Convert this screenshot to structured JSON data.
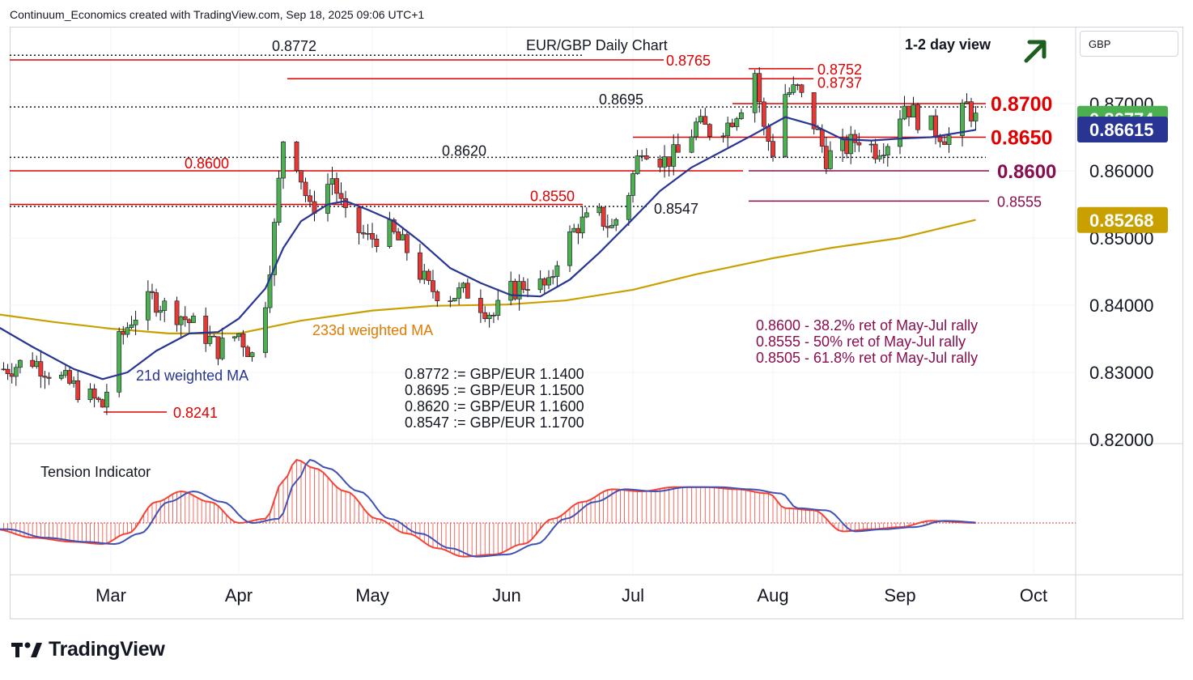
{
  "header": {
    "attribution": "Continuum_Economics created with TradingView.com, Sep 18, 2025 09:06 UTC+1"
  },
  "currency": "GBP",
  "branding": {
    "name": "TradingView"
  },
  "colors": {
    "bull": "#4caf50",
    "bear": "#e53935",
    "resistance": "#e00000",
    "support": "#880e4f",
    "ma21": "#283593",
    "ma233": "#c8a000",
    "last_price_bg": "#4caf50",
    "ma21_bg": "#283593",
    "ma233_bg": "#c8a000",
    "arrow": "#1b5e20",
    "tension_fast": "#f44336",
    "tension_slow": "#3f51b5"
  },
  "chart_data": {
    "type": "candlestick",
    "title": "EUR/GBP Daily Chart",
    "view": "1-2 day view",
    "view_direction": "up",
    "y_axis": {
      "unit": "GBP",
      "ticks": [
        "0.82000",
        "0.83000",
        "0.84000",
        "0.85000",
        "0.86000",
        "0.87000"
      ],
      "range": [
        0.8175,
        0.8815
      ],
      "scale": "linear"
    },
    "x_axis": {
      "ticks": [
        "Mar",
        "Apr",
        "May",
        "Jun",
        "Jul",
        "Aug",
        "Sep",
        "Oct"
      ]
    },
    "price_badges": [
      {
        "value": "0.86774",
        "series": "last_price"
      },
      {
        "value": "0.86615",
        "series": "21d weighted MA"
      },
      {
        "value": "0.85268",
        "series": "233d weighted MA"
      }
    ],
    "moving_averages": [
      {
        "name": "21d weighted MA",
        "points": [
          [
            "2025-02-01",
            0.837
          ],
          [
            "2025-02-10",
            0.8338
          ],
          [
            "2025-02-20",
            0.8305
          ],
          [
            "2025-02-27",
            0.829
          ],
          [
            "2025-03-05",
            0.83
          ],
          [
            "2025-03-12",
            0.8332
          ],
          [
            "2025-03-20",
            0.8358
          ],
          [
            "2025-03-27",
            0.836
          ],
          [
            "2025-04-01",
            0.838
          ],
          [
            "2025-04-07",
            0.8425
          ],
          [
            "2025-04-11",
            0.8485
          ],
          [
            "2025-04-15",
            0.8525
          ],
          [
            "2025-04-21",
            0.855
          ],
          [
            "2025-04-25",
            0.8555
          ],
          [
            "2025-04-30",
            0.8542
          ],
          [
            "2025-05-06",
            0.8525
          ],
          [
            "2025-05-12",
            0.8495
          ],
          [
            "2025-05-19",
            0.8455
          ],
          [
            "2025-05-26",
            0.8433
          ],
          [
            "2025-06-02",
            0.8415
          ],
          [
            "2025-06-09",
            0.8413
          ],
          [
            "2025-06-16",
            0.8438
          ],
          [
            "2025-06-23",
            0.8478
          ],
          [
            "2025-06-30",
            0.8522
          ],
          [
            "2025-07-07",
            0.857
          ],
          [
            "2025-07-14",
            0.8605
          ],
          [
            "2025-07-21",
            0.863
          ],
          [
            "2025-07-28",
            0.8655
          ],
          [
            "2025-08-04",
            0.868
          ],
          [
            "2025-08-11",
            0.8668
          ],
          [
            "2025-08-18",
            0.8647
          ],
          [
            "2025-08-25",
            0.8645
          ],
          [
            "2025-09-01",
            0.8648
          ],
          [
            "2025-09-08",
            0.865
          ],
          [
            "2025-09-18",
            0.8661
          ]
        ]
      },
      {
        "name": "233d weighted MA",
        "points": [
          [
            "2025-02-01",
            0.8387
          ],
          [
            "2025-02-15",
            0.8375
          ],
          [
            "2025-03-01",
            0.8365
          ],
          [
            "2025-03-15",
            0.8358
          ],
          [
            "2025-04-01",
            0.8358
          ],
          [
            "2025-04-15",
            0.8377
          ],
          [
            "2025-05-01",
            0.8392
          ],
          [
            "2025-05-15",
            0.8399
          ],
          [
            "2025-06-01",
            0.8401
          ],
          [
            "2025-06-15",
            0.8407
          ],
          [
            "2025-07-01",
            0.8423
          ],
          [
            "2025-07-15",
            0.8446
          ],
          [
            "2025-08-01",
            0.847
          ],
          [
            "2025-08-15",
            0.8485
          ],
          [
            "2025-09-01",
            0.85
          ],
          [
            "2025-09-18",
            0.8527
          ]
        ]
      }
    ],
    "candles_close": [
      [
        "2025-02-03",
        0.8305
      ],
      [
        "2025-02-10",
        0.8318
      ],
      [
        "2025-02-17",
        0.829
      ],
      [
        "2025-02-24",
        0.8262
      ],
      [
        "2025-02-27",
        0.825
      ],
      [
        "2025-03-03",
        0.8345
      ],
      [
        "2025-03-06",
        0.838
      ],
      [
        "2025-03-11",
        0.841
      ],
      [
        "2025-03-14",
        0.8398
      ],
      [
        "2025-03-18",
        0.8385
      ],
      [
        "2025-03-24",
        0.8355
      ],
      [
        "2025-03-27",
        0.8335
      ],
      [
        "2025-04-01",
        0.8358
      ],
      [
        "2025-04-04",
        0.8325
      ],
      [
        "2025-04-07",
        0.841
      ],
      [
        "2025-04-09",
        0.8515
      ],
      [
        "2025-04-11",
        0.8648
      ],
      [
        "2025-04-14",
        0.8615
      ],
      [
        "2025-04-17",
        0.854
      ],
      [
        "2025-04-22",
        0.859
      ],
      [
        "2025-04-25",
        0.8528
      ],
      [
        "2025-04-30",
        0.8498
      ],
      [
        "2025-05-05",
        0.851
      ],
      [
        "2025-05-09",
        0.8482
      ],
      [
        "2025-05-14",
        0.8425
      ],
      [
        "2025-05-19",
        0.8415
      ],
      [
        "2025-05-23",
        0.842
      ],
      [
        "2025-05-26",
        0.8402
      ],
      [
        "2025-05-29",
        0.8385
      ],
      [
        "2025-06-02",
        0.842
      ],
      [
        "2025-06-06",
        0.8435
      ],
      [
        "2025-06-11",
        0.8425
      ],
      [
        "2025-06-13",
        0.8472
      ],
      [
        "2025-06-18",
        0.852
      ],
      [
        "2025-06-23",
        0.8532
      ],
      [
        "2025-06-26",
        0.8515
      ],
      [
        "2025-06-30",
        0.857
      ],
      [
        "2025-07-03",
        0.864
      ],
      [
        "2025-07-08",
        0.8615
      ],
      [
        "2025-07-11",
        0.8625
      ],
      [
        "2025-07-15",
        0.8668
      ],
      [
        "2025-07-18",
        0.866
      ],
      [
        "2025-07-22",
        0.867
      ],
      [
        "2025-07-25",
        0.87
      ],
      [
        "2025-07-28",
        0.8748
      ],
      [
        "2025-07-30",
        0.866
      ],
      [
        "2025-08-01",
        0.863
      ],
      [
        "2025-08-04",
        0.8715
      ],
      [
        "2025-08-07",
        0.872
      ],
      [
        "2025-08-11",
        0.867
      ],
      [
        "2025-08-14",
        0.862
      ],
      [
        "2025-08-19",
        0.8635
      ],
      [
        "2025-08-22",
        0.865
      ],
      [
        "2025-08-26",
        0.8632
      ],
      [
        "2025-08-29",
        0.8645
      ],
      [
        "2025-09-02",
        0.87
      ],
      [
        "2025-09-05",
        0.8678
      ],
      [
        "2025-09-09",
        0.866
      ],
      [
        "2025-09-12",
        0.865
      ],
      [
        "2025-09-16",
        0.8697
      ],
      [
        "2025-09-18",
        0.8677
      ]
    ],
    "levels": [
      {
        "label": "0.8772",
        "value": 0.8772,
        "style": "dotted",
        "color": "black"
      },
      {
        "label": "0.8765",
        "value": 0.8765,
        "style": "solid",
        "color": "resistance"
      },
      {
        "label": "0.8752",
        "value": 0.8752,
        "style": "solid",
        "color": "resistance"
      },
      {
        "label": "0.8737",
        "value": 0.8737,
        "style": "solid",
        "color": "resistance"
      },
      {
        "label": "0.8700",
        "value": 0.87,
        "style": "solid",
        "color": "resistance"
      },
      {
        "label": "0.8695",
        "value": 0.8695,
        "style": "dotted",
        "color": "black"
      },
      {
        "label": "0.8650",
        "value": 0.865,
        "style": "solid",
        "color": "resistance"
      },
      {
        "label": "0.8620",
        "value": 0.862,
        "style": "dotted",
        "color": "black"
      },
      {
        "label": "0.8600",
        "value": 0.86,
        "style": "solid",
        "color": "resistance"
      },
      {
        "label": "0.8600",
        "value": 0.86,
        "style": "solid",
        "color": "support"
      },
      {
        "label": "0.8555",
        "value": 0.8555,
        "style": "solid",
        "color": "support"
      },
      {
        "label": "0.8550",
        "value": 0.855,
        "style": "solid",
        "color": "resistance"
      },
      {
        "label": "0.8547",
        "value": 0.8547,
        "style": "dotted",
        "color": "black"
      },
      {
        "label": "0.8241",
        "value": 0.8241,
        "style": "solid",
        "color": "resistance"
      }
    ],
    "annotations": {
      "ma21_label": "21d weighted MA",
      "ma233_label": "233d weighted MA",
      "retracements": [
        "0.8600 - 38.2% ret of May-Jul rally",
        "0.8555 - 50% ret of May-Jul rally",
        "0.8505 - 61.8% ret of May-Jul rally"
      ],
      "conversions": [
        "0.8772 := GBP/EUR 1.1400",
        "0.8695 := GBP/EUR 1.1500",
        "0.8620 := GBP/EUR 1.1600",
        "0.8547 := GBP/EUR 1.1700"
      ]
    },
    "tension_indicator": {
      "title": "Tension Indicator",
      "points": [
        [
          "2025-02-01",
          -0.3
        ],
        [
          "2025-02-10",
          -0.7
        ],
        [
          "2025-02-20",
          -0.9
        ],
        [
          "2025-02-27",
          -1.0
        ],
        [
          "2025-03-05",
          -0.5
        ],
        [
          "2025-03-12",
          1.0
        ],
        [
          "2025-03-18",
          1.5
        ],
        [
          "2025-03-25",
          1.0
        ],
        [
          "2025-04-01",
          0.0
        ],
        [
          "2025-04-07",
          0.2
        ],
        [
          "2025-04-11",
          2.0
        ],
        [
          "2025-04-14",
          3.0
        ],
        [
          "2025-04-18",
          2.6
        ],
        [
          "2025-04-25",
          1.5
        ],
        [
          "2025-05-02",
          0.2
        ],
        [
          "2025-05-09",
          -0.5
        ],
        [
          "2025-05-16",
          -1.2
        ],
        [
          "2025-05-22",
          -1.6
        ],
        [
          "2025-05-29",
          -1.5
        ],
        [
          "2025-06-05",
          -1.0
        ],
        [
          "2025-06-12",
          0.2
        ],
        [
          "2025-06-19",
          1.0
        ],
        [
          "2025-06-26",
          1.6
        ],
        [
          "2025-07-03",
          1.5
        ],
        [
          "2025-07-10",
          1.7
        ],
        [
          "2025-07-17",
          1.7
        ],
        [
          "2025-07-24",
          1.6
        ],
        [
          "2025-07-31",
          1.4
        ],
        [
          "2025-08-04",
          0.7
        ],
        [
          "2025-08-11",
          0.6
        ],
        [
          "2025-08-18",
          -0.4
        ],
        [
          "2025-08-25",
          -0.3
        ],
        [
          "2025-09-01",
          -0.2
        ],
        [
          "2025-09-08",
          0.1
        ],
        [
          "2025-09-18",
          0.0
        ]
      ]
    }
  }
}
